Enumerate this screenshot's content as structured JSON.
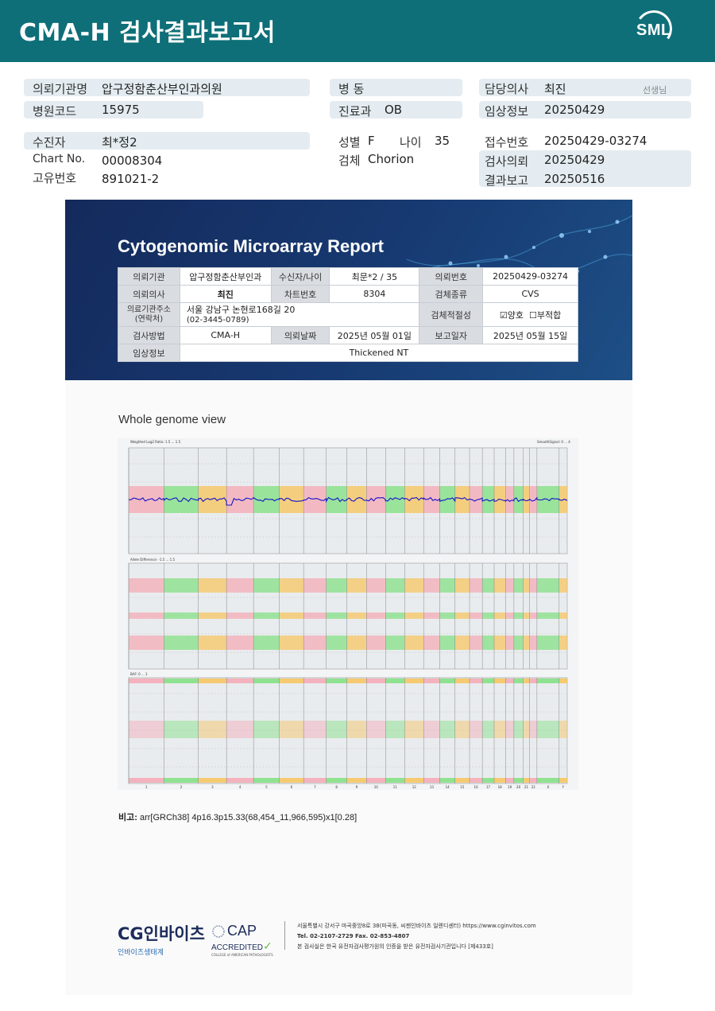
{
  "header": {
    "title": "CMA-H 검사결과보고서",
    "logo": "SML"
  },
  "info": {
    "referring_label": "의뢰기관명",
    "referring_value": "압구정함춘산부인과의원",
    "hospital_code_label": "병원코드",
    "hospital_code_value": "15975",
    "ward_label": "병 동",
    "dept_label": "진료과",
    "dept_value": "OB",
    "doctor_label": "담당의사",
    "doctor_value": "최진",
    "doctor_suffix": "선생님",
    "clinical_label": "임상정보",
    "clinical_value": "20250429",
    "patient_label": "수진자",
    "patient_value": "최*정2",
    "chart_label": "Chart No.",
    "chart_value": "00008304",
    "uid_label": "고유번호",
    "uid_value": "891021-2",
    "sex_label": "성별",
    "sex_value": "F",
    "age_label": "나이",
    "age_value": "35",
    "specimen_label": "검체",
    "specimen_value": "Chorion",
    "receipt_label": "접수번호",
    "receipt_value": "20250429-03274",
    "request_label": "검사의뢰",
    "request_value": "20250429",
    "report_label": "결과보고",
    "report_value": "20250516"
  },
  "report": {
    "title": "Cytogenomic Microarray Report",
    "r1": [
      "의뢰기관",
      "압구정함춘산부인과",
      "수신자/나이",
      "최문*2 / 35",
      "의뢰번호",
      "20250429-03274"
    ],
    "r2": [
      "의뢰의사",
      "최진",
      "차트번호",
      "8304",
      "검체종류",
      "CVS"
    ],
    "r3_label": "의료기관주소\n(연락처)",
    "r3_addr1": "서울 강남구 논현로168길 20",
    "r3_addr2": "(02-3445-0789)",
    "r3_label2": "검체적절성",
    "r3_check1": "양호",
    "r3_check2": "부적합",
    "r4": [
      "검사방법",
      "CMA-H",
      "의뢰날짜",
      "2025년 05월 01일",
      "보고일자",
      "2025년 05월 15일"
    ],
    "r5": [
      "임상정보",
      "Thickened NT"
    ]
  },
  "plot": {
    "title": "Whole genome view",
    "panel1_label": "Weighted Log2 Ratio: 1.5 ... 1.5",
    "panel1_right": "SmoothSignal: 0 ... 4",
    "panel2_label": "Allele Difference: -1.5 ... 1.5",
    "panel3_label": "BAF: 0 ... 1",
    "chromosomes": [
      "1",
      "2",
      "3",
      "4",
      "5",
      "6",
      "7",
      "8",
      "9",
      "10",
      "11",
      "12",
      "13",
      "14",
      "15",
      "16",
      "17",
      "18",
      "19",
      "20",
      "21",
      "22",
      "X",
      "Y"
    ],
    "colors": {
      "pink": "#f5a8b4",
      "green": "#7fe07f",
      "orange": "#f7c45a",
      "blue": "#1414c8"
    }
  },
  "remark": {
    "label": "비고:",
    "text": "arr[GRCh38] 4p16.3p15.33(68,454_11,966,595)x1[0.28]"
  },
  "footer": {
    "cg_logo": "CG인바이츠",
    "cg_sub": "인바이츠생태계",
    "cap_title": "CAP",
    "cap_accredited": "ACCREDITED",
    "cap_college": "COLLEGE of AMERICAN PATHOLOGISTS",
    "addr1": "서울특별시 강서구 마곡중앙8로 38(마곡동, 씨젠인바이츠 일렌디센터)  https://www.cginvitos.com",
    "addr2": "Tel. 02-2107-2729   Fax. 02-853-4807",
    "addr3": "본 검사실은 한국 유전자검사평가원의 인증을 받은 유전자검사기관입니다  [제433호]"
  }
}
